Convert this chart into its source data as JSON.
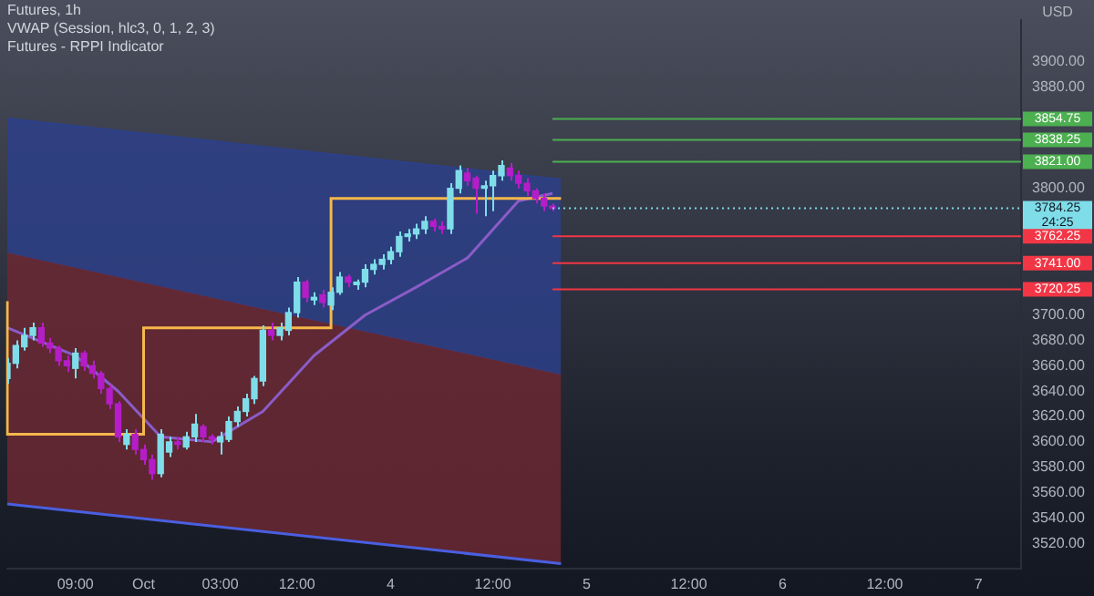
{
  "chart_data": {
    "type": "candlestick",
    "title": "Futures, 1h",
    "subtitle": "VWAP (Session, hlc3, 0, 1, 2, 3)",
    "annotations": [
      "Futures - RPPI Indicator",
      "USD",
      "24:25"
    ],
    "categories": [
      null,
      null,
      null,
      null,
      null,
      null,
      null,
      null,
      "09:00",
      null,
      null,
      null,
      null,
      null,
      null,
      null,
      "Oct",
      null,
      null,
      null,
      null,
      null,
      null,
      null,
      null,
      "03:00",
      null,
      null,
      null,
      null,
      null,
      null,
      null,
      null,
      "12:00",
      null,
      null,
      null,
      null,
      null,
      null,
      null,
      null,
      null,
      null,
      "4",
      null,
      null,
      null,
      null,
      null,
      null,
      null,
      null,
      null,
      null,
      null,
      "12:00",
      null,
      null,
      null,
      null,
      null,
      null,
      null,
      null,
      null,
      null,
      "5",
      null,
      null,
      null,
      null,
      null,
      null,
      null,
      null,
      null,
      null,
      null,
      "12:00",
      null,
      null,
      null,
      null,
      null,
      null,
      null,
      null,
      null,
      null,
      "6",
      null,
      null,
      null,
      null,
      null,
      null,
      null,
      null,
      null,
      null,
      null,
      "12:00",
      null,
      null,
      null,
      null,
      null,
      null,
      null,
      null,
      null,
      null,
      "7",
      null,
      null,
      null,
      null,
      null
    ],
    "ohlc": [
      [
        3650,
        3666,
        3646,
        3662
      ],
      [
        3662,
        3680,
        3658,
        3676
      ],
      [
        3675,
        3690,
        3672,
        3684
      ],
      [
        3684,
        3694,
        3680,
        3690
      ],
      [
        3690,
        3694,
        3675,
        3678
      ],
      [
        3678,
        3682,
        3670,
        3674
      ],
      [
        3674,
        3676,
        3660,
        3664
      ],
      [
        3664,
        3668,
        3655,
        3660
      ],
      [
        3658,
        3674,
        3650,
        3670
      ],
      [
        3670,
        3672,
        3656,
        3660
      ],
      [
        3660,
        3664,
        3650,
        3654
      ],
      [
        3654,
        3656,
        3638,
        3642
      ],
      [
        3642,
        3645,
        3626,
        3630
      ],
      [
        3630,
        3632,
        3600,
        3604
      ],
      [
        3598,
        3610,
        3594,
        3606
      ],
      [
        3606,
        3610,
        3590,
        3594
      ],
      [
        3594,
        3598,
        3582,
        3586
      ],
      [
        3586,
        3590,
        3570,
        3575
      ],
      [
        3575,
        3610,
        3572,
        3606
      ],
      [
        3592,
        3604,
        3588,
        3600
      ],
      [
        3600,
        3604,
        3594,
        3598
      ],
      [
        3596,
        3608,
        3594,
        3604
      ],
      [
        3604,
        3622,
        3600,
        3614
      ],
      [
        3612,
        3614,
        3600,
        3604
      ],
      [
        3604,
        3606,
        3598,
        3602
      ],
      [
        3600,
        3608,
        3590,
        3604
      ],
      [
        3602,
        3620,
        3600,
        3616
      ],
      [
        3616,
        3628,
        3612,
        3624
      ],
      [
        3624,
        3638,
        3620,
        3634
      ],
      [
        3634,
        3652,
        3630,
        3650
      ],
      [
        3648,
        3692,
        3644,
        3688
      ],
      [
        3688,
        3694,
        3680,
        3684
      ],
      [
        3684,
        3694,
        3680,
        3690
      ],
      [
        3688,
        3706,
        3684,
        3702
      ],
      [
        3702,
        3730,
        3698,
        3726
      ],
      [
        3726,
        3728,
        3710,
        3714
      ],
      [
        3712,
        3718,
        3708,
        3714
      ],
      [
        3716,
        3720,
        3706,
        3710
      ],
      [
        3708,
        3722,
        3704,
        3718
      ],
      [
        3718,
        3734,
        3716,
        3730
      ],
      [
        3730,
        3732,
        3722,
        3726
      ],
      [
        3724,
        3728,
        3720,
        3726
      ],
      [
        3726,
        3740,
        3722,
        3736
      ],
      [
        3736,
        3744,
        3732,
        3740
      ],
      [
        3740,
        3748,
        3736,
        3744
      ],
      [
        3744,
        3754,
        3740,
        3750
      ],
      [
        3750,
        3766,
        3746,
        3762
      ],
      [
        3762,
        3768,
        3758,
        3764
      ],
      [
        3764,
        3772,
        3760,
        3768
      ],
      [
        3768,
        3778,
        3764,
        3774
      ],
      [
        3774,
        3776,
        3766,
        3770
      ],
      [
        3770,
        3774,
        3764,
        3768
      ],
      [
        3768,
        3804,
        3764,
        3800
      ],
      [
        3800,
        3818,
        3796,
        3814
      ],
      [
        3812,
        3816,
        3802,
        3806
      ],
      [
        3808,
        3810,
        3780,
        3800
      ],
      [
        3800,
        3806,
        3778,
        3802
      ],
      [
        3802,
        3814,
        3782,
        3810
      ],
      [
        3810,
        3822,
        3806,
        3818
      ],
      [
        3816,
        3820,
        3806,
        3810
      ],
      [
        3810,
        3814,
        3800,
        3804
      ],
      [
        3804,
        3808,
        3794,
        3798
      ],
      [
        3798,
        3800,
        3788,
        3792
      ],
      [
        3792,
        3796,
        3782,
        3786
      ],
      [
        3786,
        3788,
        3782,
        3784.25
      ],
      null,
      null,
      null,
      null,
      null,
      null,
      null,
      null,
      null,
      null,
      null,
      null,
      null,
      null,
      null,
      null,
      null,
      null,
      null,
      null,
      null,
      null,
      null,
      null,
      null,
      null,
      null,
      null,
      null,
      null,
      null,
      null,
      null,
      null,
      null,
      null,
      null,
      null,
      null,
      null,
      null,
      null,
      null,
      null,
      null,
      null,
      null,
      null,
      null,
      null,
      null,
      null,
      null,
      null,
      null
    ],
    "colors": [
      "#7fdde9",
      "#7fdde9",
      "#7fdde9",
      "#7fdde9",
      "#b41dc7",
      "#b41dc7",
      "#b41dc7",
      "#b41dc7",
      "#7fdde9",
      "#b41dc7",
      "#b41dc7",
      "#b41dc7",
      "#b41dc7",
      "#b41dc7",
      "#7fdde9",
      "#b41dc7",
      "#b41dc7",
      "#b41dc7",
      "#7fdde9",
      "#7fdde9",
      "#b41dc7",
      "#7fdde9",
      "#7fdde9",
      "#b41dc7",
      "#b41dc7",
      "#7fdde9",
      "#7fdde9",
      "#7fdde9",
      "#7fdde9",
      "#7fdde9",
      "#7fdde9",
      "#b41dc7",
      "#7fdde9",
      "#7fdde9",
      "#7fdde9",
      "#b41dc7",
      "#7fdde9",
      "#b41dc7",
      "#7fdde9",
      "#7fdde9",
      "#b41dc7",
      "#7fdde9",
      "#7fdde9",
      "#7fdde9",
      "#7fdde9",
      "#7fdde9",
      "#7fdde9",
      "#7fdde9",
      "#7fdde9",
      "#7fdde9",
      "#b41dc7",
      "#b41dc7",
      "#7fdde9",
      "#7fdde9",
      "#b41dc7",
      "#b41dc7",
      "#7fdde9",
      "#7fdde9",
      "#7fdde9",
      "#b41dc7",
      "#b41dc7",
      "#b41dc7",
      "#b41dc7",
      "#b41dc7",
      "#b41dc7",
      null,
      null,
      null,
      null,
      null,
      null,
      null,
      null,
      null,
      null,
      null,
      null,
      null,
      null,
      null,
      null,
      null,
      null,
      null,
      null,
      null,
      null,
      null,
      null,
      null,
      null,
      null,
      null,
      null,
      null,
      null,
      null,
      null,
      null,
      null,
      null,
      null,
      null,
      null,
      null,
      null,
      null,
      null,
      null,
      null,
      null,
      null,
      null,
      null,
      null,
      null,
      null,
      null,
      null,
      null
    ],
    "series": [
      {
        "type": "area",
        "color": "#2d4088",
        "values": [
          3855,
          null,
          null,
          null,
          null,
          null,
          null,
          null,
          null,
          null,
          null,
          null,
          null,
          null,
          null,
          null,
          null,
          null,
          null,
          null,
          null,
          null,
          null,
          null,
          null,
          null,
          null,
          null,
          null,
          null,
          null,
          null,
          null,
          null,
          null,
          null,
          null,
          null,
          null,
          null,
          null,
          null,
          null,
          null,
          null,
          null,
          null,
          null,
          null,
          null,
          null,
          null,
          null,
          null,
          null,
          null,
          null,
          null,
          null,
          null,
          null,
          null,
          null,
          null,
          null,
          3807,
          null,
          null,
          null,
          null,
          null,
          null,
          null,
          null,
          null,
          null,
          null,
          null,
          null,
          null,
          null,
          null,
          null,
          null,
          null,
          null,
          null,
          null,
          null,
          null,
          null,
          null,
          null,
          null,
          null,
          null,
          null,
          null,
          null,
          null,
          null,
          null,
          null,
          null,
          null,
          null,
          null,
          null,
          null,
          null,
          null,
          null,
          null,
          null,
          null,
          null,
          null,
          null,
          null,
          null
        ]
      },
      {
        "type": "area",
        "color": "#6a2832",
        "values": [
          3749,
          null,
          null,
          null,
          null,
          null,
          null,
          null,
          null,
          null,
          null,
          null,
          null,
          null,
          null,
          null,
          null,
          null,
          null,
          null,
          null,
          null,
          null,
          null,
          null,
          null,
          null,
          null,
          null,
          null,
          null,
          null,
          null,
          null,
          null,
          null,
          null,
          null,
          null,
          null,
          null,
          null,
          null,
          null,
          null,
          null,
          null,
          null,
          null,
          null,
          null,
          null,
          null,
          null,
          null,
          null,
          null,
          null,
          null,
          null,
          null,
          null,
          null,
          null,
          null,
          3653,
          null,
          null,
          null,
          null,
          null,
          null,
          null,
          null,
          null,
          null,
          null,
          null,
          null,
          null,
          null,
          null,
          null,
          null,
          null,
          null,
          null,
          null,
          null,
          null,
          null,
          null,
          null,
          null,
          null,
          null,
          null,
          null,
          null,
          null,
          null,
          null,
          null,
          null,
          null,
          null,
          null,
          null,
          null,
          null,
          null,
          null,
          null,
          null,
          null,
          null,
          null,
          null,
          null,
          null
        ]
      },
      {
        "type": "line",
        "color": "#4a5fe0",
        "values": [
          3551,
          null,
          null,
          null,
          null,
          null,
          null,
          null,
          null,
          null,
          null,
          null,
          null,
          null,
          null,
          null,
          null,
          null,
          null,
          null,
          null,
          null,
          null,
          null,
          null,
          null,
          null,
          null,
          null,
          null,
          null,
          null,
          null,
          null,
          null,
          null,
          null,
          null,
          null,
          null,
          null,
          null,
          null,
          null,
          null,
          null,
          null,
          null,
          null,
          null,
          null,
          null,
          null,
          null,
          null,
          null,
          null,
          null,
          null,
          null,
          null,
          null,
          null,
          null,
          null,
          3504,
          null,
          null,
          null,
          null,
          null,
          null,
          null,
          null,
          null,
          null,
          null,
          null,
          null,
          null,
          null,
          null,
          null,
          null,
          null,
          null,
          null,
          null,
          null,
          null,
          null,
          null,
          null,
          null,
          null,
          null,
          null,
          null,
          null,
          null,
          null,
          null,
          null,
          null,
          null,
          null,
          null,
          null,
          null,
          null,
          null,
          null,
          null,
          null,
          null,
          null,
          null,
          null,
          null,
          null
        ]
      },
      {
        "type": "line",
        "color": "#8a5cc7",
        "values": [
          3690,
          null,
          null,
          null,
          null,
          null,
          null,
          null,
          3668,
          null,
          null,
          null,
          null,
          3640,
          null,
          null,
          null,
          null,
          3604,
          null,
          null,
          null,
          null,
          null,
          3600,
          null,
          null,
          null,
          null,
          null,
          3624,
          null,
          null,
          null,
          null,
          null,
          3668,
          null,
          null,
          null,
          null,
          null,
          3700,
          null,
          null,
          null,
          null,
          null,
          3722,
          null,
          null,
          null,
          null,
          null,
          3745,
          null,
          null,
          null,
          null,
          null,
          3790,
          null,
          null,
          null,
          3796,
          null,
          null,
          null,
          null,
          null,
          null,
          null,
          null,
          null,
          null,
          null,
          null,
          null,
          null,
          null,
          null,
          null,
          null,
          null,
          null,
          null,
          null,
          null,
          null,
          null,
          null,
          null,
          null,
          null,
          null,
          null,
          null,
          null,
          null,
          null,
          null,
          null,
          null,
          null,
          null,
          null,
          null,
          null,
          null,
          null,
          null,
          null,
          null,
          null,
          null,
          null,
          null,
          null,
          null,
          null
        ]
      },
      {
        "type": "step",
        "color": "#f5b84a",
        "values": [
          3711,
          null,
          null,
          null,
          null,
          null,
          null,
          null,
          null,
          null,
          null,
          null,
          null,
          null,
          null,
          null,
          3606,
          null,
          null,
          null,
          null,
          null,
          null,
          null,
          null,
          null,
          null,
          null,
          null,
          null,
          null,
          null,
          null,
          null,
          null,
          null,
          null,
          null,
          3690,
          null,
          null,
          null,
          null,
          null,
          null,
          null,
          null,
          null,
          null,
          null,
          null,
          null,
          null,
          null,
          null,
          null,
          null,
          null,
          null,
          null,
          null,
          null,
          3792,
          null,
          null,
          3792,
          null,
          null,
          null,
          null,
          null,
          null,
          null,
          null,
          null,
          null,
          null,
          null,
          null,
          null,
          null,
          null,
          null,
          null,
          null,
          null,
          null,
          null,
          null,
          null,
          null,
          null,
          null,
          null,
          null,
          null,
          null,
          null,
          null,
          null,
          null,
          null,
          null,
          null,
          null,
          null,
          null,
          null,
          null,
          null,
          null,
          null,
          null,
          null,
          null,
          null,
          null,
          null,
          null,
          null
        ]
      }
    ],
    "ylim": [
      3500,
      3933
    ],
    "yticks": [
      {
        "value": 3520,
        "label": "3520.00"
      },
      {
        "value": 3540,
        "label": "3540.00"
      },
      {
        "value": 3560,
        "label": "3560.00"
      },
      {
        "value": 3580,
        "label": "3580.00"
      },
      {
        "value": 3600,
        "label": "3600.00"
      },
      {
        "value": 3620,
        "label": "3620.00"
      },
      {
        "value": 3640,
        "label": "3640.00"
      },
      {
        "value": 3660,
        "label": "3660.00"
      },
      {
        "value": 3680,
        "label": "3680.00"
      },
      {
        "value": 3700,
        "label": "3700.00"
      },
      {
        "value": 3800,
        "label": "3800.00"
      },
      {
        "value": 3880,
        "label": "3880.00"
      },
      {
        "value": 3900,
        "label": "3900.00"
      }
    ],
    "ref_lines": [
      {
        "axis": "y",
        "value": 3854.75,
        "label": "3854.75",
        "color": "#4caf50"
      },
      {
        "axis": "y",
        "value": 3838.25,
        "label": "3838.25",
        "color": "#4caf50"
      },
      {
        "axis": "y",
        "value": 3821.0,
        "label": "3821.00",
        "color": "#4caf50"
      },
      {
        "axis": "y",
        "value": 3784.25,
        "label": "3784.25",
        "color": "#7fdde9",
        "line_style": "dotted"
      },
      {
        "axis": "y",
        "value": 3762.25,
        "label": "3762.25",
        "color": "#f23645"
      },
      {
        "axis": "y",
        "value": 3741.0,
        "label": "3741.00",
        "color": "#f23645"
      },
      {
        "axis": "y",
        "value": 3720.25,
        "label": "3720.25",
        "color": "#f23645"
      }
    ],
    "grid": false,
    "legend": false
  }
}
